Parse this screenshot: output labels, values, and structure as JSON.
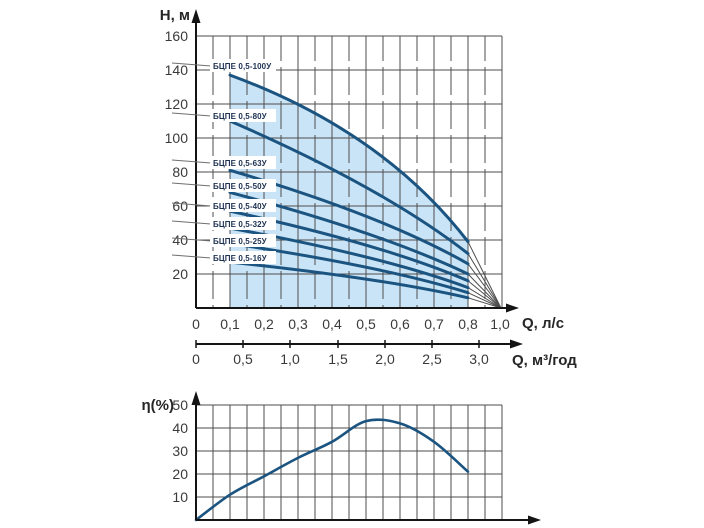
{
  "colors": {
    "curve": "#1b5480",
    "shade": "#c9e4f6",
    "grid": "#4e4e4e",
    "axis": "#141414",
    "fan": "#4e4e4e",
    "leader": "#6f6f6f",
    "label_text": "#1c3050",
    "tick_text": "#3a3a3a",
    "label_box": "#ffffff"
  },
  "chart_data": [
    {
      "type": "line",
      "ylabel": "Н, м",
      "xlabel": "Q, л/с",
      "xlabel_secondary": "Q, м³/год",
      "ylim": [
        0,
        160
      ],
      "xlim": [
        0,
        1.0
      ],
      "grid": true,
      "minor_x_step": 0.05,
      "y_ticks": [
        "160",
        "140",
        "120",
        "100",
        "80",
        "60",
        "40",
        "20"
      ],
      "x_ticks": [
        "0",
        "0,1",
        "0,2",
        "0,3",
        "0,4",
        "0,5",
        "0,6",
        "0,7",
        "0,8",
        "1,0"
      ],
      "x_ticks_secondary": [
        "0",
        "0,5",
        "1,0",
        "1,5",
        "2,0",
        "2,5",
        "3,0"
      ],
      "shaded_band": {
        "q_from": 0.1,
        "q_to": 0.8
      },
      "convergence": {
        "h": 0,
        "at_tick": "1,0"
      },
      "series": [
        {
          "label": "БЦПЕ 0,5-100У",
          "q": [
            0.1,
            0.5,
            0.8
          ],
          "h": [
            137,
            96,
            39
          ]
        },
        {
          "label": "БЦПЕ 0,5-80У",
          "q": [
            0.1,
            0.5,
            0.8
          ],
          "h": [
            110,
            71,
            32
          ]
        },
        {
          "label": "БЦПЕ 0,5-63У",
          "q": [
            0.1,
            0.5,
            0.8
          ],
          "h": [
            81,
            54,
            26
          ]
        },
        {
          "label": "БЦПЕ 0,5-50У",
          "q": [
            0.1,
            0.5,
            0.8
          ],
          "h": [
            68,
            44,
            20
          ]
        },
        {
          "label": "БЦПЕ 0,5-40У",
          "q": [
            0.1,
            0.5,
            0.8
          ],
          "h": [
            57,
            37,
            16
          ]
        },
        {
          "label": "БЦПЕ 0,5-32У",
          "q": [
            0.1,
            0.5,
            0.8
          ],
          "h": [
            47,
            30,
            12
          ]
        },
        {
          "label": "БЦПЕ 0,5-25У",
          "q": [
            0.1,
            0.5,
            0.8
          ],
          "h": [
            38,
            24,
            9
          ]
        },
        {
          "label": "БЦПЕ 0,5-16У",
          "q": [
            0.1,
            0.5,
            0.8
          ],
          "h": [
            27,
            17,
            6
          ]
        }
      ]
    },
    {
      "type": "line",
      "ylabel": "η(%)",
      "ylim": [
        0,
        50
      ],
      "grid": true,
      "y_ticks": [
        "50",
        "40",
        "30",
        "20",
        "10"
      ],
      "series": [
        {
          "label": "efficiency",
          "q": [
            0,
            0.1,
            0.2,
            0.3,
            0.4,
            0.5,
            0.6,
            0.7,
            0.8
          ],
          "eta": [
            0,
            11,
            19,
            27,
            34,
            43,
            42,
            34,
            21
          ]
        }
      ]
    }
  ]
}
